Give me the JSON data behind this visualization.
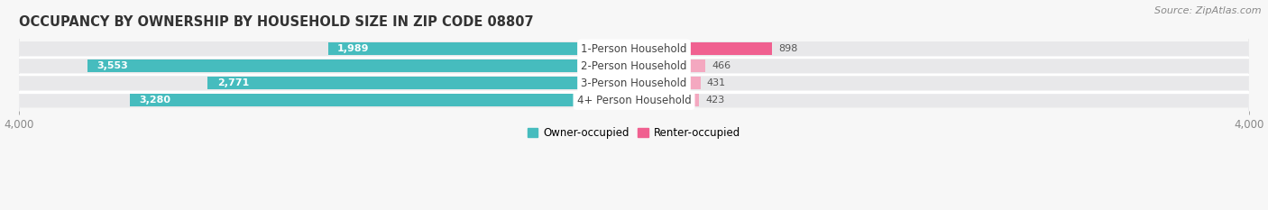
{
  "title": "OCCUPANCY BY OWNERSHIP BY HOUSEHOLD SIZE IN ZIP CODE 08807",
  "source": "Source: ZipAtlas.com",
  "categories": [
    "1-Person Household",
    "2-Person Household",
    "3-Person Household",
    "4+ Person Household"
  ],
  "owner_values": [
    1989,
    3553,
    2771,
    3280
  ],
  "renter_values": [
    898,
    466,
    431,
    423
  ],
  "owner_color": "#46BCBE",
  "renter_colors": [
    "#F06090",
    "#F4A8C0",
    "#F4A8C0",
    "#F4A8C0"
  ],
  "row_bg_color": "#E8E8EA",
  "row_separator_color": "#FFFFFF",
  "axis_max": 4000,
  "owner_label": "Owner-occupied",
  "renter_label": "Renter-occupied",
  "title_fontsize": 10.5,
  "source_fontsize": 8,
  "tick_fontsize": 8.5,
  "value_fontsize": 8,
  "label_fontsize": 8,
  "background_color": "#F7F7F7",
  "value_color_white": "#FFFFFF",
  "value_color_dark": "#555555",
  "center_label_color": "#444444"
}
